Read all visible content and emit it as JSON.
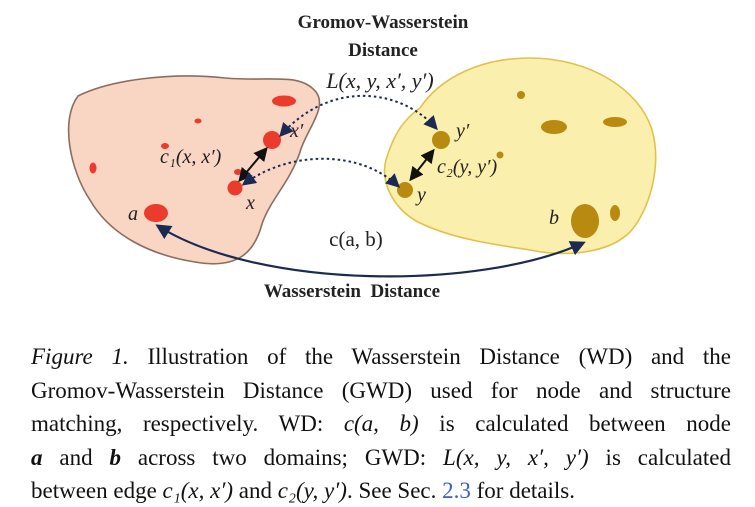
{
  "figure": {
    "gwd_title_line1": "Gromov-Wasserstein",
    "gwd_title_line2": "Distance",
    "gwd_cost": "L(x, y, x′, y′)",
    "c1_label": "c₁(x, x′)",
    "c2_label": "c₂(y, y′)",
    "x_prime": "x′",
    "x": "x",
    "y_prime": "y′",
    "y": "y",
    "a": "a",
    "b": "b",
    "wd_cost": "c(a, b)",
    "wd_title": "Wasserstein  Distance",
    "colors": {
      "left_domain_fill": "#f9d5c4",
      "left_domain_stroke": "#8a6e62",
      "left_node": "#ea3b2c",
      "right_domain_fill": "#fbefae",
      "right_domain_stroke": "#e0c24a",
      "right_node": "#b88a0f"
    }
  },
  "caption": {
    "label": "Figure 1.",
    "line1_rest": " Illustration of the Wasserstein Distance (WD) and the",
    "line2": "Gromov-Wasserstein Distance (GWD) used for node and structure",
    "line3_a": "matching, respectively. WD: ",
    "line3_math": "c(a, b)",
    "line3_b": " is calculated between node",
    "line4_a": "a",
    "line4_mid1": " and ",
    "line4_b": "b",
    "line4_mid2": " across two domains; GWD: ",
    "line4_math": "L(x, y, x′, y′)",
    "line4_end": " is calculated",
    "line5_a": "between edge ",
    "line5_math1": "c₁(x, x′)",
    "line5_mid": " and ",
    "line5_math2": "c₂(y, y′)",
    "line5_b": ". See Sec. ",
    "line5_ref": "2.3",
    "line5_end": " for details."
  }
}
